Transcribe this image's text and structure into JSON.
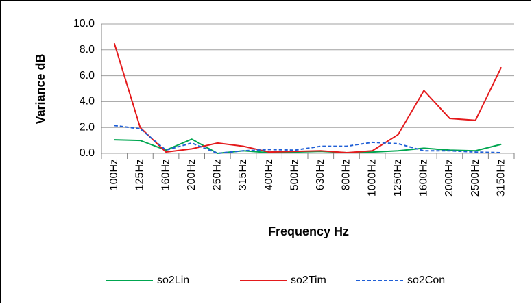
{
  "chart_data": {
    "type": "line",
    "x_label": "Frequency Hz",
    "y_label": "Variance dB",
    "categories": [
      "100Hz",
      "125Hz",
      "160Hz",
      "200Hz",
      "250Hz",
      "315Hz",
      "400Hz",
      "500Hz",
      "630Hz",
      "800Hz",
      "1000Hz",
      "1250Hz",
      "1600Hz",
      "2000Hz",
      "2500Hz",
      "3150Hz"
    ],
    "series": [
      {
        "name": "so2Lin",
        "color": "#00a650",
        "dash": false,
        "values": [
          1.05,
          1.0,
          0.25,
          1.1,
          0.0,
          0.2,
          0.05,
          0.1,
          0.15,
          0.05,
          0.1,
          0.2,
          0.4,
          0.25,
          0.2,
          0.7
        ]
      },
      {
        "name": "so2Tim",
        "color": "#e41a1c",
        "dash": false,
        "values": [
          8.5,
          2.0,
          0.1,
          0.35,
          0.8,
          0.55,
          0.1,
          0.15,
          0.2,
          0.05,
          0.2,
          1.45,
          4.85,
          2.7,
          2.55,
          6.65
        ]
      },
      {
        "name": "so2Con",
        "color": "#1f5fd6",
        "dash": true,
        "values": [
          2.15,
          1.9,
          0.25,
          0.8,
          0.0,
          0.2,
          0.3,
          0.25,
          0.55,
          0.55,
          0.85,
          0.75,
          0.2,
          0.2,
          0.1,
          0.05
        ]
      }
    ],
    "ylim": [
      0,
      10
    ],
    "yticks": [
      {
        "value": 0,
        "label": "0.0"
      },
      {
        "value": 2,
        "label": "2.0"
      },
      {
        "value": 4,
        "label": "4.0"
      },
      {
        "value": 6,
        "label": "6.0"
      },
      {
        "value": 8,
        "label": "8.0"
      },
      {
        "value": 10,
        "label": "10.0"
      }
    ],
    "grid": true,
    "legend": "bottom"
  }
}
